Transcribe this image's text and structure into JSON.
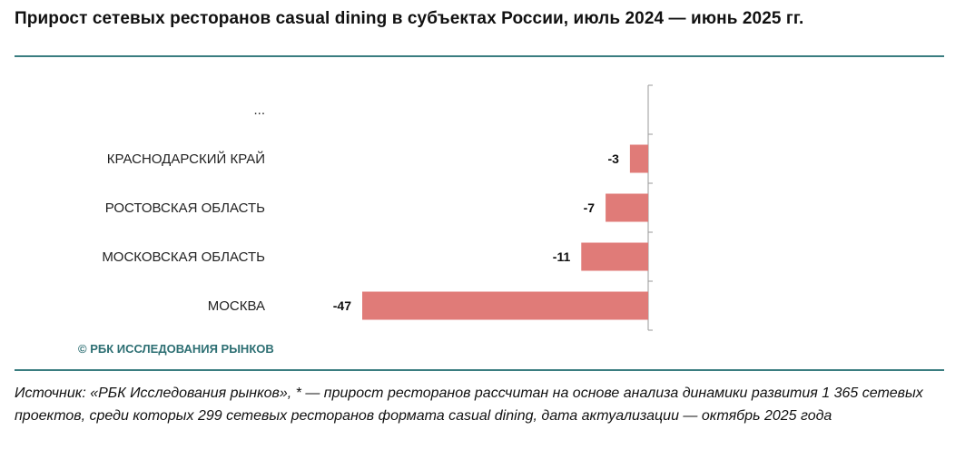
{
  "title": "Прирост сетевых ресторанов casual dining в субъектах России, июль 2024 — июнь 2025 гг.",
  "watermark": "© РБК ИССЛЕДОВАНИЯ РЫНКОВ",
  "source": "Источник: «РБК Исследования рынков», * — прирост ресторанов рассчитан на основе анализа динамики развития 1 365 сетевых проектов, среди которых 299 сетевых ресторанов формата casual dining, дата актуализации — октябрь 2025 года",
  "colors": {
    "bar": "#e07b78",
    "rule": "#3a7d80",
    "watermark": "#2d6f73"
  },
  "chart_data": {
    "type": "bar",
    "orientation": "horizontal",
    "title": "Прирост сетевых ресторанов casual dining в субъектах России, июль 2024 — июнь 2025 гг.",
    "categories": [
      "...",
      "КРАСНОДАРСКИЙ КРАЙ",
      "РОСТОВСКАЯ ОБЛАСТЬ",
      "МОСКОВСКАЯ ОБЛАСТЬ",
      "МОСКВА"
    ],
    "values": [
      null,
      -3,
      -7,
      -11,
      -47
    ],
    "labels": [
      "",
      "-3",
      "-7",
      "-11",
      "-47"
    ],
    "xlim": [
      -47,
      0
    ],
    "xlabel": "",
    "ylabel": "",
    "grid": false,
    "legend": null
  }
}
